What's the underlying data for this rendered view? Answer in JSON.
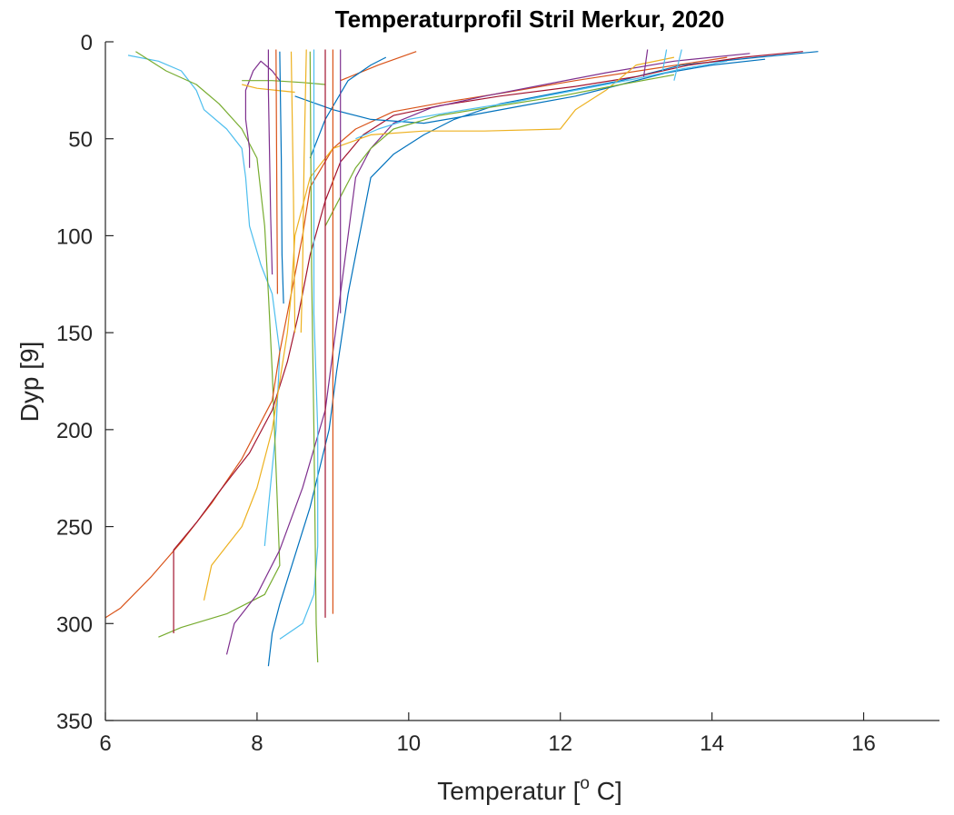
{
  "chart_data": {
    "type": "line",
    "title": "Temperaturprofil Stril Merkur, 2020",
    "xlabel": {
      "main": "Temperatur [",
      "sup": "o",
      "tail": " C]"
    },
    "ylabel": "Dyp [9]",
    "xlim": [
      6,
      17
    ],
    "ylim": [
      0,
      350
    ],
    "y_reversed": true,
    "xticks": [
      6,
      8,
      10,
      12,
      14,
      16
    ],
    "yticks": [
      0,
      50,
      100,
      150,
      200,
      250,
      300,
      350
    ],
    "grid": false,
    "series": [
      {
        "color": "#4dbeee",
        "points": [
          [
            6.3,
            7
          ],
          [
            6.7,
            10
          ],
          [
            7.0,
            15
          ],
          [
            7.2,
            25
          ],
          [
            7.3,
            35
          ],
          [
            7.6,
            45
          ],
          [
            7.8,
            55
          ],
          [
            7.85,
            70
          ],
          [
            7.9,
            95
          ],
          [
            8.05,
            115
          ],
          [
            8.2,
            130
          ],
          [
            8.3,
            160
          ],
          [
            8.25,
            200
          ],
          [
            8.15,
            240
          ],
          [
            8.1,
            260
          ]
        ]
      },
      {
        "color": "#77ac30",
        "points": [
          [
            6.4,
            5
          ],
          [
            6.8,
            15
          ],
          [
            7.2,
            22
          ],
          [
            7.5,
            32
          ],
          [
            7.8,
            45
          ],
          [
            8.0,
            60
          ],
          [
            8.1,
            95
          ],
          [
            8.15,
            130
          ],
          [
            8.2,
            170
          ],
          [
            8.25,
            220
          ],
          [
            8.3,
            270
          ],
          [
            8.1,
            285
          ],
          [
            7.6,
            295
          ],
          [
            7.0,
            302
          ],
          [
            6.7,
            307
          ]
        ]
      },
      {
        "color": "#0072bd",
        "points": [
          [
            15.4,
            5
          ],
          [
            14.6,
            8
          ],
          [
            13.6,
            12
          ],
          [
            12.8,
            20
          ],
          [
            12.0,
            26
          ],
          [
            11.2,
            32
          ],
          [
            10.6,
            40
          ],
          [
            10.2,
            48
          ],
          [
            9.8,
            58
          ],
          [
            9.5,
            70
          ],
          [
            9.35,
            100
          ],
          [
            9.2,
            130
          ],
          [
            9.05,
            170
          ],
          [
            8.95,
            200
          ],
          [
            8.7,
            240
          ],
          [
            8.5,
            265
          ],
          [
            8.3,
            290
          ],
          [
            8.2,
            305
          ],
          [
            8.15,
            322
          ]
        ]
      },
      {
        "color": "#d95319",
        "points": [
          [
            14.2,
            8
          ],
          [
            13.2,
            14
          ],
          [
            12.2,
            20
          ],
          [
            11.3,
            26
          ],
          [
            10.5,
            31
          ],
          [
            9.8,
            36
          ],
          [
            9.3,
            45
          ],
          [
            9.0,
            55
          ],
          [
            8.7,
            75
          ],
          [
            8.6,
            100
          ],
          [
            8.45,
            130
          ],
          [
            8.3,
            160
          ],
          [
            8.2,
            185
          ],
          [
            7.8,
            215
          ],
          [
            7.4,
            238
          ],
          [
            7.0,
            258
          ],
          [
            6.6,
            276
          ],
          [
            6.2,
            292
          ],
          [
            6.0,
            297
          ]
        ]
      },
      {
        "color": "#a2142f",
        "points": [
          [
            15.2,
            5
          ],
          [
            14.4,
            8
          ],
          [
            13.7,
            12
          ],
          [
            13.0,
            18
          ],
          [
            12.2,
            23
          ],
          [
            11.2,
            28
          ],
          [
            10.4,
            33
          ],
          [
            9.8,
            38
          ],
          [
            9.4,
            48
          ],
          [
            9.1,
            62
          ],
          [
            8.9,
            82
          ],
          [
            8.7,
            110
          ],
          [
            8.55,
            140
          ],
          [
            8.4,
            165
          ],
          [
            8.2,
            190
          ],
          [
            7.9,
            212
          ],
          [
            7.5,
            232
          ],
          [
            7.2,
            248
          ],
          [
            6.9,
            262
          ],
          [
            6.9,
            305
          ]
        ]
      },
      {
        "color": "#7e2f8e",
        "points": [
          [
            14.5,
            6
          ],
          [
            13.5,
            10
          ],
          [
            12.6,
            16
          ],
          [
            11.8,
            22
          ],
          [
            11.0,
            28
          ],
          [
            10.3,
            34
          ],
          [
            9.8,
            42
          ],
          [
            9.5,
            55
          ],
          [
            9.3,
            70
          ],
          [
            9.2,
            100
          ],
          [
            9.1,
            130
          ],
          [
            9.0,
            160
          ],
          [
            8.9,
            190
          ],
          [
            8.6,
            230
          ],
          [
            8.3,
            262
          ],
          [
            8.0,
            285
          ],
          [
            7.7,
            300
          ],
          [
            7.6,
            316
          ]
        ]
      },
      {
        "color": "#edb120",
        "points": [
          [
            13.5,
            8
          ],
          [
            13.0,
            12
          ],
          [
            12.6,
            25
          ],
          [
            12.2,
            35
          ],
          [
            12.0,
            45
          ],
          [
            11.0,
            46
          ],
          [
            10.2,
            46
          ],
          [
            9.5,
            48
          ],
          [
            9.0,
            55
          ],
          [
            8.7,
            70
          ],
          [
            8.5,
            100
          ],
          [
            8.45,
            130
          ],
          [
            8.4,
            150
          ],
          [
            8.2,
            200
          ],
          [
            8.0,
            230
          ],
          [
            7.8,
            250
          ],
          [
            7.6,
            260
          ],
          [
            7.4,
            270
          ],
          [
            7.3,
            288
          ]
        ]
      },
      {
        "color": "#0072bd",
        "points": [
          [
            8.5,
            28
          ],
          [
            9.0,
            35
          ],
          [
            9.5,
            40
          ],
          [
            10.2,
            42
          ],
          [
            10.8,
            38
          ],
          [
            11.5,
            33
          ],
          [
            12.2,
            28
          ],
          [
            12.8,
            22
          ],
          [
            13.4,
            16
          ],
          [
            14.0,
            12
          ],
          [
            14.7,
            9
          ]
        ]
      },
      {
        "color": "#4dbeee",
        "points": [
          [
            9.3,
            50
          ],
          [
            9.6,
            45
          ],
          [
            10.0,
            40
          ],
          [
            10.6,
            36
          ],
          [
            11.4,
            31
          ],
          [
            12.2,
            25
          ],
          [
            13.0,
            19
          ],
          [
            13.6,
            14
          ],
          [
            14.2,
            10
          ]
        ]
      },
      {
        "color": "#77ac30",
        "points": [
          [
            8.9,
            95
          ],
          [
            9.1,
            80
          ],
          [
            9.3,
            65
          ],
          [
            9.5,
            55
          ],
          [
            9.8,
            45
          ],
          [
            10.4,
            38
          ],
          [
            11.2,
            33
          ],
          [
            12.0,
            28
          ],
          [
            12.8,
            22
          ],
          [
            13.5,
            17
          ]
        ]
      },
      {
        "color": "#7e2f8e",
        "points": [
          [
            8.3,
            20
          ],
          [
            8.2,
            15
          ],
          [
            8.05,
            10
          ],
          [
            7.95,
            15
          ],
          [
            7.85,
            25
          ],
          [
            7.85,
            40
          ],
          [
            7.9,
            55
          ],
          [
            7.9,
            65
          ]
        ]
      },
      {
        "color": "#d95319",
        "points": [
          [
            9.1,
            20
          ],
          [
            9.6,
            12
          ],
          [
            10.1,
            5
          ]
        ]
      },
      {
        "color": "#0072bd",
        "points": [
          [
            8.7,
            60
          ],
          [
            8.9,
            40
          ],
          [
            9.2,
            20
          ],
          [
            9.5,
            12
          ],
          [
            9.7,
            8
          ]
        ]
      },
      {
        "color": "#77ac30",
        "points": [
          [
            7.8,
            20
          ],
          [
            8.2,
            20
          ],
          [
            8.6,
            21
          ],
          [
            8.9,
            22
          ]
        ]
      },
      {
        "color": "#edb120",
        "points": [
          [
            7.8,
            22
          ],
          [
            8.0,
            24
          ],
          [
            8.25,
            25
          ],
          [
            8.5,
            26
          ]
        ]
      },
      {
        "color": "#a2142f",
        "points": [
          [
            8.9,
            4
          ],
          [
            8.9,
            297
          ]
        ]
      },
      {
        "color": "#d95319",
        "points": [
          [
            9.0,
            4
          ],
          [
            9.0,
            295
          ]
        ]
      },
      {
        "color": "#4dbeee",
        "points": [
          [
            8.75,
            4
          ],
          [
            8.75,
            140
          ],
          [
            8.8,
            200
          ],
          [
            8.8,
            260
          ],
          [
            8.75,
            285
          ],
          [
            8.6,
            300
          ],
          [
            8.3,
            308
          ]
        ]
      },
      {
        "color": "#77ac30",
        "points": [
          [
            8.7,
            5
          ],
          [
            8.72,
            120
          ],
          [
            8.75,
            200
          ],
          [
            8.78,
            300
          ],
          [
            8.8,
            320
          ]
        ]
      },
      {
        "color": "#7e2f8e",
        "points": [
          [
            8.15,
            4
          ],
          [
            8.15,
            25
          ],
          [
            8.18,
            90
          ],
          [
            8.2,
            120
          ]
        ]
      },
      {
        "color": "#edb120",
        "points": [
          [
            8.65,
            4
          ],
          [
            8.62,
            60
          ],
          [
            8.6,
            120
          ],
          [
            8.58,
            150
          ]
        ]
      },
      {
        "color": "#0072bd",
        "points": [
          [
            8.3,
            5
          ],
          [
            8.32,
            60
          ],
          [
            8.33,
            110
          ],
          [
            8.35,
            135
          ]
        ]
      },
      {
        "color": "#d95319",
        "points": [
          [
            8.25,
            4
          ],
          [
            8.26,
            70
          ],
          [
            8.27,
            130
          ]
        ]
      },
      {
        "color": "#7e2f8e",
        "points": [
          [
            9.1,
            4
          ],
          [
            9.1,
            140
          ]
        ]
      },
      {
        "color": "#edb120",
        "points": [
          [
            8.45,
            5
          ],
          [
            8.48,
            80
          ],
          [
            8.5,
            150
          ]
        ]
      },
      {
        "color": "#4dbeee",
        "points": [
          [
            13.6,
            4
          ],
          [
            13.5,
            20
          ]
        ]
      },
      {
        "color": "#7e2f8e",
        "points": [
          [
            13.15,
            4
          ],
          [
            13.1,
            18
          ]
        ]
      },
      {
        "color": "#4dbeee",
        "points": [
          [
            13.4,
            4
          ],
          [
            13.35,
            15
          ]
        ]
      }
    ]
  }
}
